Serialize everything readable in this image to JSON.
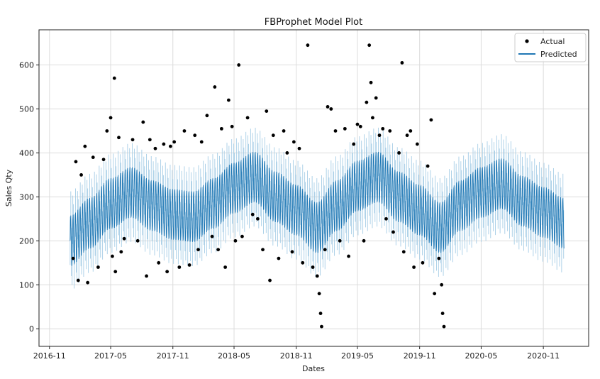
{
  "chart_data": {
    "type": "line",
    "title": "FBProphet Model Plot",
    "xlabel": "Dates",
    "ylabel": "Sales Qty",
    "x_ticks": [
      "2016-11",
      "2017-05",
      "2017-11",
      "2018-05",
      "2018-11",
      "2019-05",
      "2019-11",
      "2020-05",
      "2020-11"
    ],
    "y_ticks": [
      0,
      100,
      200,
      300,
      400,
      500,
      600
    ],
    "xlim": [
      "2016-10-01",
      "2021-03-15"
    ],
    "ylim": [
      -40,
      680
    ],
    "grid": true,
    "legend": "top-right",
    "colors": {
      "actual": "#000000",
      "predicted": "#1f77b4",
      "band": "#a6cde6"
    },
    "series": [
      {
        "name": "Actual",
        "kind": "scatter",
        "points": [
          [
            "2017-01-10",
            160
          ],
          [
            "2017-01-18",
            380
          ],
          [
            "2017-01-25",
            110
          ],
          [
            "2017-02-03",
            350
          ],
          [
            "2017-02-14",
            415
          ],
          [
            "2017-02-22",
            105
          ],
          [
            "2017-03-10",
            390
          ],
          [
            "2017-03-25",
            140
          ],
          [
            "2017-04-10",
            385
          ],
          [
            "2017-04-20",
            450
          ],
          [
            "2017-05-01",
            480
          ],
          [
            "2017-05-06",
            165
          ],
          [
            "2017-05-12",
            570
          ],
          [
            "2017-05-15",
            130
          ],
          [
            "2017-05-25",
            435
          ],
          [
            "2017-06-01",
            175
          ],
          [
            "2017-06-10",
            205
          ],
          [
            "2017-07-05",
            430
          ],
          [
            "2017-07-20",
            200
          ],
          [
            "2017-08-05",
            470
          ],
          [
            "2017-08-15",
            120
          ],
          [
            "2017-08-25",
            430
          ],
          [
            "2017-09-10",
            410
          ],
          [
            "2017-09-20",
            150
          ],
          [
            "2017-10-05",
            420
          ],
          [
            "2017-10-15",
            130
          ],
          [
            "2017-10-25",
            415
          ],
          [
            "2017-11-05",
            425
          ],
          [
            "2017-11-20",
            140
          ],
          [
            "2017-12-05",
            450
          ],
          [
            "2017-12-20",
            145
          ],
          [
            "2018-01-05",
            440
          ],
          [
            "2018-01-15",
            180
          ],
          [
            "2018-01-25",
            425
          ],
          [
            "2018-02-10",
            485
          ],
          [
            "2018-02-25",
            210
          ],
          [
            "2018-03-05",
            550
          ],
          [
            "2018-03-15",
            180
          ],
          [
            "2018-03-25",
            455
          ],
          [
            "2018-04-05",
            140
          ],
          [
            "2018-04-15",
            520
          ],
          [
            "2018-04-25",
            460
          ],
          [
            "2018-05-05",
            200
          ],
          [
            "2018-05-15",
            600
          ],
          [
            "2018-05-25",
            210
          ],
          [
            "2018-06-10",
            480
          ],
          [
            "2018-06-25",
            260
          ],
          [
            "2018-07-10",
            250
          ],
          [
            "2018-07-25",
            180
          ],
          [
            "2018-08-05",
            495
          ],
          [
            "2018-08-15",
            110
          ],
          [
            "2018-08-25",
            440
          ],
          [
            "2018-09-10",
            160
          ],
          [
            "2018-09-25",
            450
          ],
          [
            "2018-10-05",
            400
          ],
          [
            "2018-10-20",
            175
          ],
          [
            "2018-10-25",
            425
          ],
          [
            "2018-11-10",
            410
          ],
          [
            "2018-11-20",
            150
          ],
          [
            "2018-12-05",
            645
          ],
          [
            "2018-12-20",
            140
          ],
          [
            "2019-01-02",
            120
          ],
          [
            "2019-01-08",
            80
          ],
          [
            "2019-01-12",
            35
          ],
          [
            "2019-01-15",
            5
          ],
          [
            "2019-01-25",
            180
          ],
          [
            "2019-02-02",
            505
          ],
          [
            "2019-02-12",
            500
          ],
          [
            "2019-02-25",
            450
          ],
          [
            "2019-03-10",
            200
          ],
          [
            "2019-03-25",
            455
          ],
          [
            "2019-04-05",
            165
          ],
          [
            "2019-04-20",
            420
          ],
          [
            "2019-05-01",
            465
          ],
          [
            "2019-05-10",
            460
          ],
          [
            "2019-05-20",
            200
          ],
          [
            "2019-05-28",
            515
          ],
          [
            "2019-06-05",
            645
          ],
          [
            "2019-06-10",
            560
          ],
          [
            "2019-06-15",
            480
          ],
          [
            "2019-06-25",
            525
          ],
          [
            "2019-07-05",
            440
          ],
          [
            "2019-07-15",
            455
          ],
          [
            "2019-07-25",
            250
          ],
          [
            "2019-08-05",
            450
          ],
          [
            "2019-08-15",
            220
          ],
          [
            "2019-09-01",
            400
          ],
          [
            "2019-09-10",
            605
          ],
          [
            "2019-09-15",
            175
          ],
          [
            "2019-09-25",
            440
          ],
          [
            "2019-10-05",
            450
          ],
          [
            "2019-10-15",
            140
          ],
          [
            "2019-10-25",
            420
          ],
          [
            "2019-11-10",
            150
          ],
          [
            "2019-11-25",
            370
          ],
          [
            "2019-12-05",
            475
          ],
          [
            "2019-12-15",
            80
          ],
          [
            "2019-12-28",
            160
          ],
          [
            "2020-01-05",
            100
          ],
          [
            "2020-01-08",
            35
          ],
          [
            "2020-01-12",
            5
          ]
        ]
      },
      {
        "name": "Predicted",
        "kind": "line_with_band",
        "start": "2017-01-01",
        "end": "2021-01-01",
        "actual_end": "2020-01-01",
        "trend": [
          [
            "2017-01-01",
            200
          ],
          [
            "2017-03-01",
            240
          ],
          [
            "2017-05-01",
            285
          ],
          [
            "2017-07-01",
            310
          ],
          [
            "2017-09-01",
            280
          ],
          [
            "2017-11-01",
            260
          ],
          [
            "2018-01-01",
            255
          ],
          [
            "2018-03-01",
            285
          ],
          [
            "2018-05-01",
            320
          ],
          [
            "2018-07-01",
            345
          ],
          [
            "2018-09-01",
            300
          ],
          [
            "2018-11-01",
            270
          ],
          [
            "2019-01-01",
            230
          ],
          [
            "2019-03-01",
            280
          ],
          [
            "2019-05-01",
            325
          ],
          [
            "2019-07-01",
            345
          ],
          [
            "2019-09-01",
            300
          ],
          [
            "2019-11-01",
            270
          ],
          [
            "2020-01-01",
            230
          ],
          [
            "2020-03-01",
            280
          ],
          [
            "2020-05-01",
            310
          ],
          [
            "2020-07-01",
            330
          ],
          [
            "2020-09-01",
            290
          ],
          [
            "2020-11-01",
            265
          ],
          [
            "2021-01-01",
            240
          ]
        ],
        "weekly_amplitude": 95,
        "band_width": 55
      }
    ]
  }
}
